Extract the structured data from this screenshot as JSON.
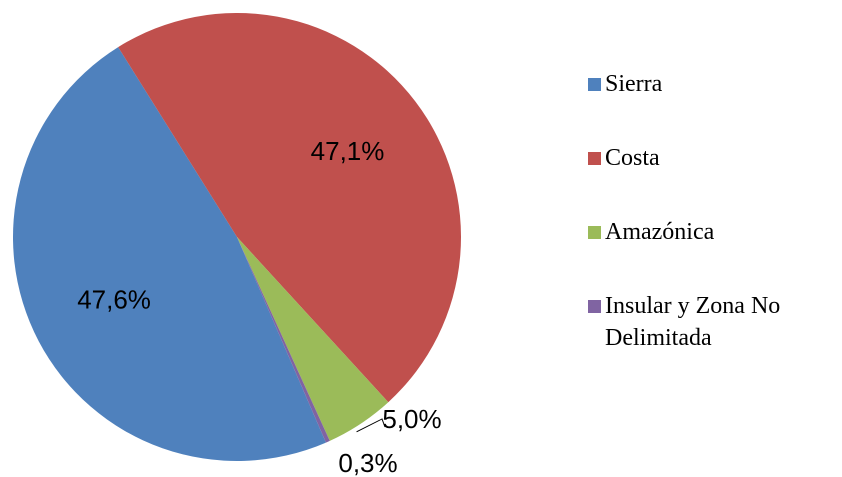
{
  "chart_data": {
    "type": "pie",
    "categories": [
      "Sierra",
      "Costa",
      "Amazónica",
      "Insular y Zona No Delimitada"
    ],
    "values": [
      47.6,
      47.1,
      5.0,
      0.3
    ],
    "value_labels": [
      "47,6%",
      "47,1%",
      "5,0%",
      "0,3%"
    ],
    "colors": [
      "#4f81bd",
      "#c0504d",
      "#9bbb59",
      "#8064a2"
    ],
    "legend": "right"
  }
}
